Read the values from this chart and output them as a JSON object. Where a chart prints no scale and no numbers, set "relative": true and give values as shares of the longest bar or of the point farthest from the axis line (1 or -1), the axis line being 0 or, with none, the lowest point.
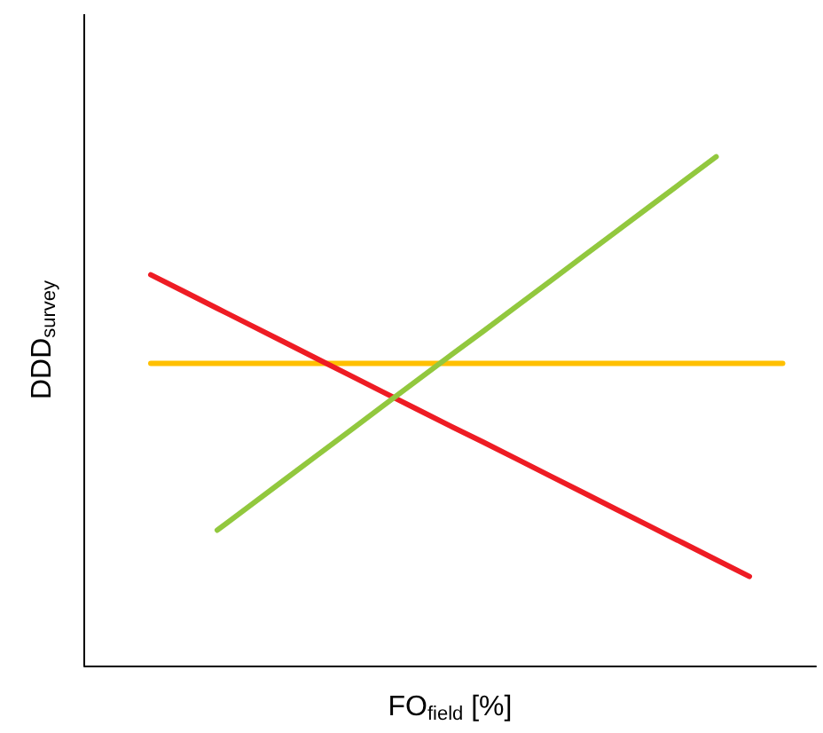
{
  "chart_data": {
    "type": "line",
    "relative": true,
    "xlabel": "FO$_{field}$ [%]",
    "ylabel": "DDD$_{survey}$",
    "grid": false,
    "marker": "none",
    "line_style": "solid",
    "categories": [
      null,
      null,
      null,
      null,
      null,
      null,
      null,
      null,
      null,
      null,
      null,
      null,
      null,
      null,
      null,
      null,
      null,
      null,
      null,
      null,
      null,
      null,
      null
    ],
    "series": [
      {
        "color": "#ffc000",
        "values": [
          null,
          null,
          0.594,
          0.594,
          0.594,
          0.594,
          0.594,
          0.594,
          0.594,
          0.594,
          0.594,
          0.594,
          0.594,
          0.594,
          0.594,
          0.594,
          0.594,
          0.594,
          0.594,
          0.594,
          0.594,
          0.594,
          null
        ]
      },
      {
        "color": "#ee1c24",
        "values": [
          null,
          null,
          0.768,
          0.735,
          0.702,
          0.669,
          0.636,
          0.603,
          0.57,
          0.537,
          0.504,
          0.471,
          0.439,
          0.406,
          0.373,
          0.34,
          0.307,
          0.274,
          0.241,
          0.208,
          0.175,
          null,
          null
        ]
      },
      {
        "color": "#92c83e",
        "values": [
          null,
          null,
          null,
          null,
          0.266,
          0.315,
          0.364,
          0.413,
          0.462,
          0.511,
          0.56,
          0.609,
          0.657,
          0.706,
          0.755,
          0.804,
          0.853,
          0.902,
          0.951,
          1,
          null,
          null,
          null
        ]
      }
    ]
  }
}
